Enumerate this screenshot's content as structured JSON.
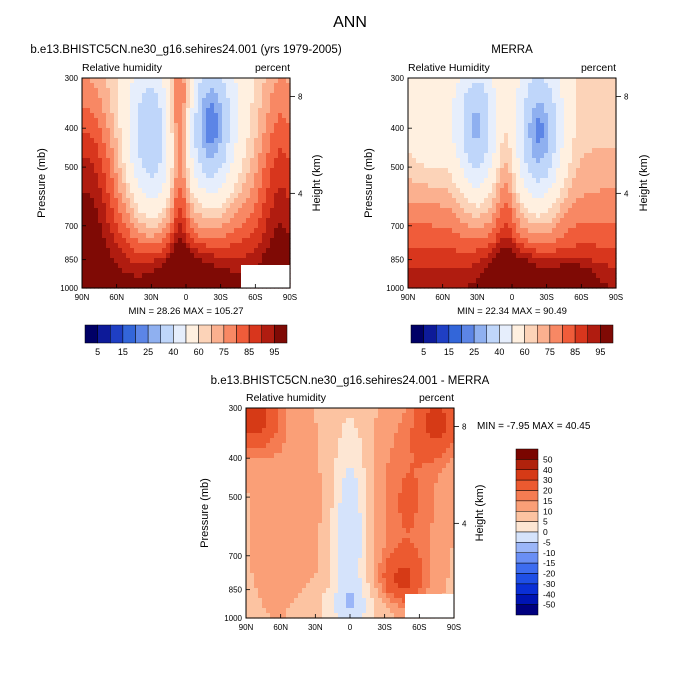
{
  "figure_title": "ANN",
  "colors": {
    "levels_main": [
      "#000066",
      "#0d1a99",
      "#1f3fc4",
      "#3366d9",
      "#5c85e6",
      "#8fb0f0",
      "#bfd6fa",
      "#e6eefc",
      "#fff0e0",
      "#fcd3b8",
      "#fbb08f",
      "#f88864",
      "#f05c3a",
      "#d8361d",
      "#b01c10",
      "#7f0a05"
    ],
    "levels_diff": [
      "#00007f",
      "#0014b3",
      "#0a2fd6",
      "#1f4fe6",
      "#3d6cf0",
      "#6a8ff5",
      "#9bb6f8",
      "#d5e3fb",
      "#fde6d3",
      "#fcc3a1",
      "#fa9f77",
      "#f57c52",
      "#ec5a30",
      "#d63a16",
      "#b0220c",
      "#7a0500"
    ]
  },
  "chart_data": [
    {
      "type": "heatmap",
      "title": "b.e13.BHISTC5CN.ne30_g16.sehires24.001 (yrs 1979-2005)",
      "left_label": "Relative humidity",
      "right_label": "percent",
      "xlabel": "",
      "ylabel": "Pressure (mb)",
      "ylabel_right": "Height (km)",
      "x_ticks": [
        "90N",
        "60N",
        "30N",
        "0",
        "30S",
        "60S",
        "90S"
      ],
      "y_ticks": [
        "300",
        "400",
        "500",
        "700",
        "850",
        "1000"
      ],
      "y_right_ticks": [
        "8",
        "4"
      ],
      "stats": "MIN = 28.26   MAX = 105.27",
      "min": 28.26,
      "max": 105.27
    },
    {
      "type": "heatmap",
      "title": "MERRA",
      "left_label": "Relative Humidity",
      "right_label": "percent",
      "xlabel": "",
      "ylabel": "Pressure (mb)",
      "ylabel_right": "Height (km)",
      "x_ticks": [
        "90N",
        "60N",
        "30N",
        "0",
        "30S",
        "60S",
        "90S"
      ],
      "y_ticks": [
        "300",
        "400",
        "500",
        "700",
        "850",
        "1000"
      ],
      "y_right_ticks": [
        "8",
        "4"
      ],
      "stats": "MIN = 22.34   MAX = 90.49",
      "min": 22.34,
      "max": 90.49
    },
    {
      "type": "heatmap",
      "title": "b.e13.BHISTC5CN.ne30_g16.sehires24.001 - MERRA",
      "left_label": "Relative humidity",
      "right_label": "percent",
      "xlabel": "",
      "ylabel": "Pressure (mb)",
      "ylabel_right": "Height (km)",
      "x_ticks": [
        "90N",
        "60N",
        "30N",
        "0",
        "30S",
        "60S",
        "90S"
      ],
      "y_ticks": [
        "300",
        "400",
        "500",
        "700",
        "850",
        "1000"
      ],
      "y_right_ticks": [
        "8",
        "4"
      ],
      "stats": "MIN = -7.95   MAX = 40.45",
      "min": -7.95,
      "max": 40.45
    }
  ],
  "colorbar_main": {
    "labels": [
      "5",
      "15",
      "25",
      "40",
      "60",
      "75",
      "85",
      "95"
    ]
  },
  "colorbar_diff": {
    "labels": [
      "50",
      "40",
      "30",
      "20",
      "15",
      "10",
      "5",
      "0",
      "-5",
      "-10",
      "-15",
      "-20",
      "-30",
      "-40",
      "-50"
    ]
  }
}
